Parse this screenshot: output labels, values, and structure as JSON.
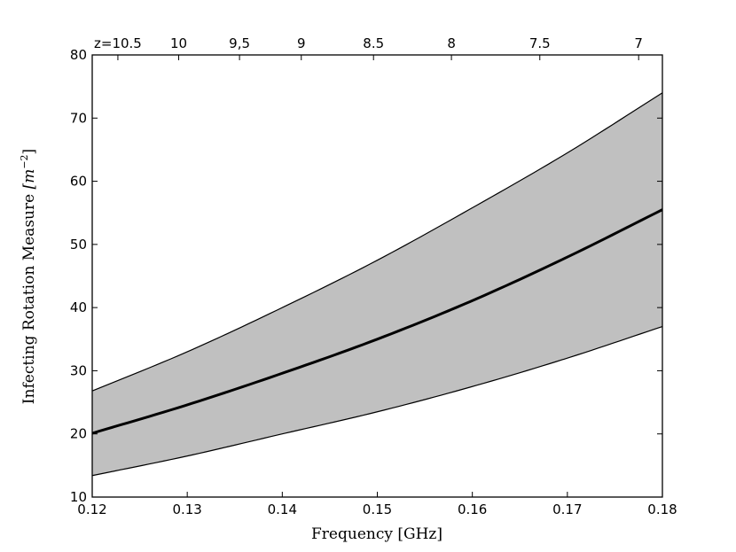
{
  "chart_data": {
    "type": "area",
    "xlabel": "Frequency [GHz]",
    "ylabel_text": "Infecting Rotation Measure ",
    "ylabel_math": "[m",
    "ylabel_exp": "−2",
    "ylabel_close": "]",
    "xlim": [
      0.12,
      0.18
    ],
    "ylim": [
      10,
      80
    ],
    "x_ticks": [
      0.12,
      0.13,
      0.14,
      0.15,
      0.16,
      0.17,
      0.18
    ],
    "x_tick_labels": [
      "0.12",
      "0.13",
      "0.14",
      "0.15",
      "0.16",
      "0.17",
      "0.18"
    ],
    "y_ticks": [
      10,
      20,
      30,
      40,
      50,
      60,
      70,
      80
    ],
    "y_tick_labels": [
      "10",
      "20",
      "30",
      "40",
      "50",
      "60",
      "70",
      "80"
    ],
    "top_axis": {
      "ticks": [
        {
          "label": "z=10.5",
          "x": 0.1227
        },
        {
          "label": "10",
          "x": 0.1291
        },
        {
          "label": "9,5",
          "x": 0.1355
        },
        {
          "label": "9",
          "x": 0.142
        },
        {
          "label": "8.5",
          "x": 0.1496
        },
        {
          "label": "8",
          "x": 0.1578
        },
        {
          "label": "7.5",
          "x": 0.1671
        },
        {
          "label": "7",
          "x": 0.1775
        }
      ]
    },
    "x": [
      0.12,
      0.13,
      0.14,
      0.15,
      0.16,
      0.17,
      0.18
    ],
    "series": [
      {
        "role": "upper",
        "values": [
          26.8,
          33.0,
          40.0,
          47.5,
          55.8,
          64.5,
          74.0
        ]
      },
      {
        "role": "median",
        "values": [
          20.1,
          24.6,
          29.6,
          35.0,
          41.1,
          48.0,
          55.5
        ]
      },
      {
        "role": "lower",
        "values": [
          13.4,
          16.5,
          20.0,
          23.5,
          27.5,
          32.0,
          37.0
        ]
      }
    ],
    "band_color": "#c0c0c0",
    "line_color": "#000000",
    "grid": false
  }
}
